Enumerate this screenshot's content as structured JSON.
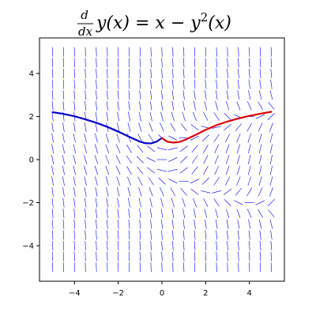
{
  "chart_data": {
    "type": "line",
    "title": {
      "fraction_numerator": "d",
      "fraction_denominator": "dx",
      "equation": "y(x) = x − y",
      "exponent": "2",
      "tail": "(x)"
    },
    "xlabel": "",
    "ylabel": "",
    "xlim": [
      -5.6,
      5.6
    ],
    "ylim": [
      -5.65,
      5.65
    ],
    "x_ticks": [
      -4,
      -2,
      0,
      2,
      4
    ],
    "y_ticks": [
      -4,
      -2,
      0,
      2,
      4
    ],
    "x_tick_labels": [
      "−4",
      "−2",
      "0",
      "2",
      "4"
    ],
    "y_tick_labels": [
      "−4",
      "−2",
      "0",
      "2",
      "4"
    ],
    "grid": false,
    "slope_field": {
      "equation": "dy/dx = x - y^2",
      "x_range": [
        -5,
        5
      ],
      "y_range": [
        -5,
        5
      ],
      "count_x": 21,
      "count_y": 21,
      "color": "#0000ff"
    },
    "series": [
      {
        "color": "#0000cc",
        "x": [
          0.0,
          -0.25,
          -0.5,
          -0.75,
          -1.0,
          -1.5,
          -2.0,
          -2.5,
          -3.0,
          -3.5,
          -4.0,
          -4.5,
          -5.0
        ],
        "y": [
          1.0,
          0.83,
          0.75,
          0.76,
          0.83,
          1.06,
          1.3,
          1.52,
          1.71,
          1.87,
          2.01,
          2.12,
          2.2
        ]
      },
      {
        "color": "#dd0000",
        "x": [
          0.0,
          0.25,
          0.5,
          0.75,
          1.0,
          1.5,
          2.0,
          2.5,
          3.0,
          3.5,
          4.0,
          4.5,
          5.0
        ],
        "y": [
          1.0,
          0.83,
          0.79,
          0.81,
          0.89,
          1.13,
          1.38,
          1.6,
          1.77,
          1.91,
          2.03,
          2.13,
          2.22
        ]
      }
    ]
  }
}
